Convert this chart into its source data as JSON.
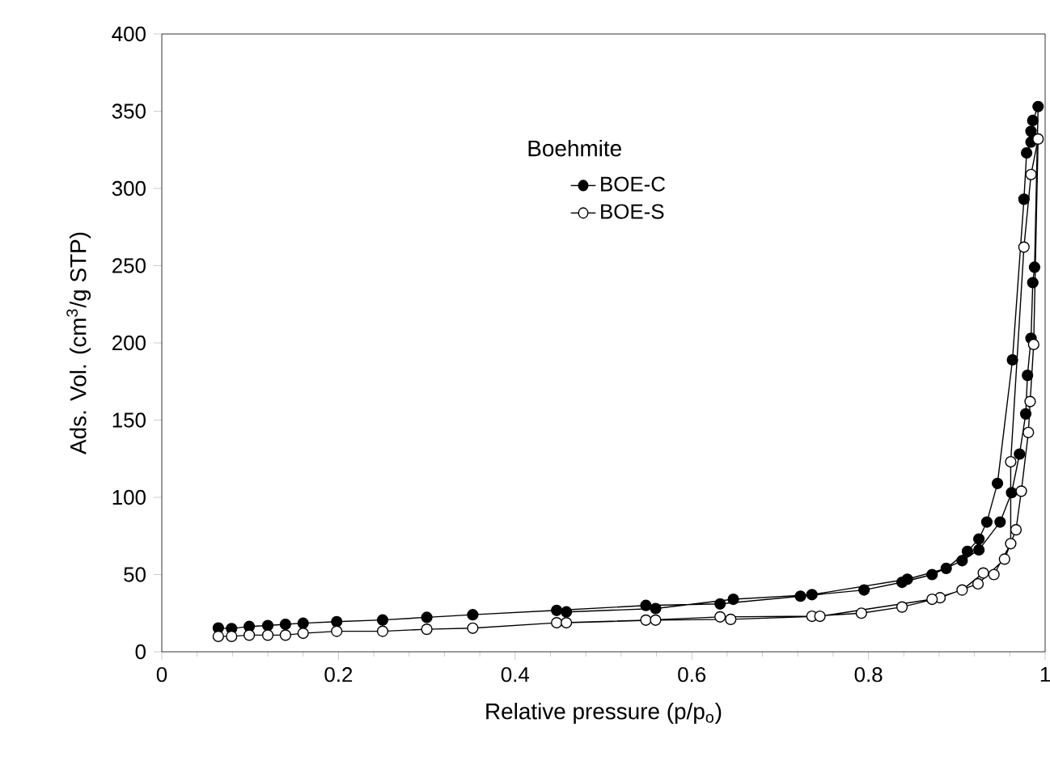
{
  "chart_data": {
    "type": "line",
    "xlabel": "Relative pressure (p/p$_{o}$)",
    "ylabel": "Ads. Vol. (cm$^{3}$/g STP)",
    "legend_title": "Boehmite",
    "xlim": [
      0,
      1
    ],
    "xticks": [
      0,
      0.2,
      0.4,
      0.6,
      0.8,
      1
    ],
    "ylim": [
      0,
      400
    ],
    "yticks": [
      0,
      50,
      100,
      150,
      200,
      250,
      300,
      350,
      400
    ],
    "grid": false,
    "legend": "top",
    "marker": "circle",
    "line_style": "solid",
    "series": [
      {
        "name": "BOE-C",
        "color": "#000000",
        "x": [
          0.064,
          0.079,
          0.099,
          0.12,
          0.14,
          0.16,
          0.198,
          0.25,
          0.3,
          0.352,
          0.447,
          0.548,
          0.632,
          0.723,
          0.795,
          0.838,
          0.872,
          0.906,
          0.925,
          0.949,
          0.962,
          0.971,
          0.978,
          0.98,
          0.984,
          0.986,
          0.988,
          0.992,
          0.986,
          0.984,
          0.984,
          0.979,
          0.976,
          0.963,
          0.946,
          0.934,
          0.925,
          0.912,
          0.888,
          0.844,
          0.736,
          0.647,
          0.559,
          0.458
        ],
        "values": [
          15.4,
          15,
          16.4,
          17,
          17.8,
          18.5,
          19.5,
          20.6,
          22.3,
          24,
          26.8,
          30,
          31,
          36,
          40,
          45,
          50,
          59,
          66,
          84,
          103,
          128,
          154,
          179,
          203,
          239,
          249,
          353,
          344,
          337,
          330,
          323,
          293,
          189,
          109,
          84,
          73,
          65,
          54,
          47,
          37,
          34,
          28,
          25.8
        ]
      },
      {
        "name": "BOE-S",
        "color": "#000000",
        "x": [
          0.064,
          0.079,
          0.099,
          0.12,
          0.14,
          0.16,
          0.198,
          0.25,
          0.3,
          0.352,
          0.447,
          0.548,
          0.632,
          0.736,
          0.792,
          0.838,
          0.881,
          0.924,
          0.954,
          0.967,
          0.973,
          0.981,
          0.983,
          0.987,
          0.992,
          0.984,
          0.976,
          0.961,
          0.961,
          0.942,
          0.93,
          0.906,
          0.872,
          0.745,
          0.644,
          0.559,
          0.458
        ],
        "values": [
          10,
          10,
          10.8,
          10.8,
          10.8,
          12,
          13.3,
          13.3,
          14.6,
          15.3,
          18.8,
          20.5,
          22.6,
          23,
          25,
          29,
          35,
          44,
          60,
          79,
          104,
          142,
          162,
          199,
          332,
          309,
          262,
          123,
          70,
          50,
          51,
          40,
          34,
          23,
          21,
          20.5,
          18.8
        ]
      }
    ]
  }
}
